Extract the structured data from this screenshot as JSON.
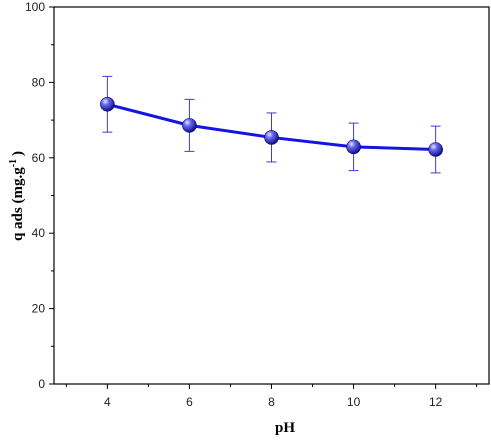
{
  "chart_data": {
    "type": "line",
    "xlabel": "pH",
    "ylabel_main": "q ads (mg.g",
    "ylabel_sup": "-1",
    "ylabel_end": ")",
    "xlim": [
      2.7,
      13.3
    ],
    "ylim": [
      0,
      100
    ],
    "x_ticks": [
      4,
      6,
      8,
      10,
      12
    ],
    "y_ticks": [
      0,
      20,
      40,
      60,
      80,
      100
    ],
    "grid": false,
    "series": [
      {
        "x": [
          4,
          6,
          8,
          10,
          12
        ],
        "y": [
          74.2,
          68.6,
          65.4,
          62.9,
          62.2
        ],
        "error": [
          7.4,
          6.9,
          6.5,
          6.3,
          6.2
        ],
        "line_color": "#1414e6",
        "marker_color": "#2c2cd8",
        "errorbar_color": "#3f3fd0"
      }
    ]
  }
}
